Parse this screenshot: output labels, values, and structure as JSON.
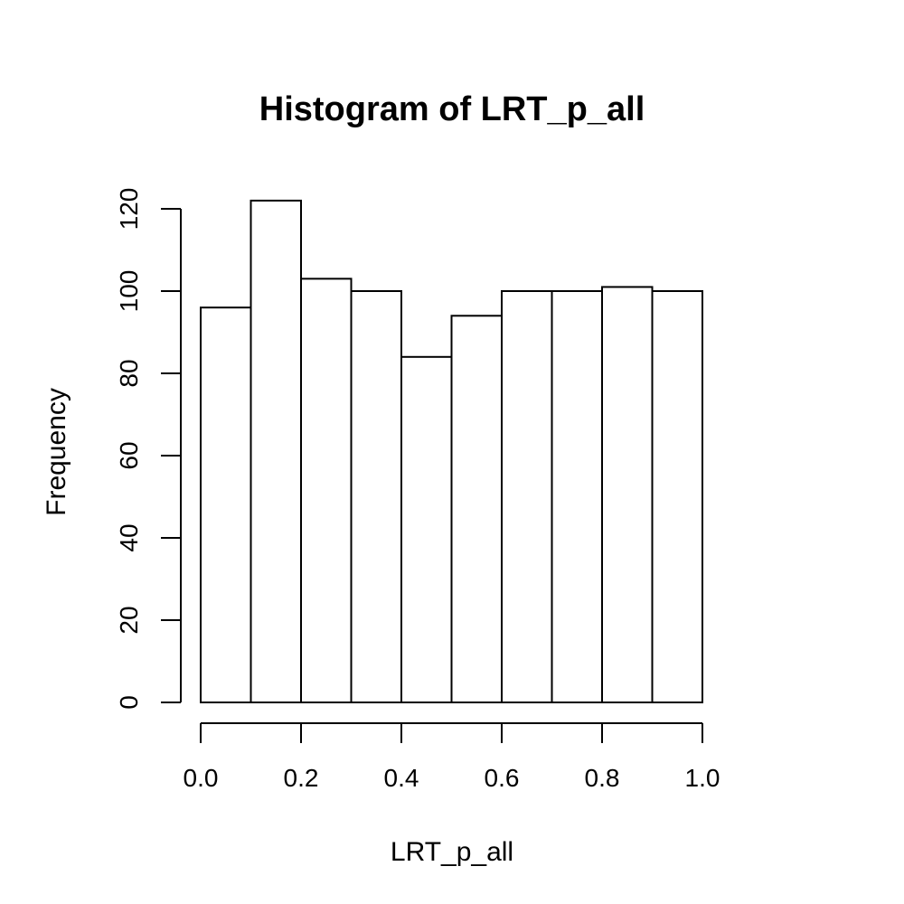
{
  "chart_data": {
    "type": "bar",
    "title": "Histogram of LRT_p_all",
    "xlabel": "LRT_p_all",
    "ylabel": "Frequency",
    "bin_edges": [
      0.0,
      0.1,
      0.2,
      0.3,
      0.4,
      0.5,
      0.6,
      0.7,
      0.8,
      0.9,
      1.0
    ],
    "values": [
      96,
      122,
      103,
      100,
      84,
      94,
      100,
      100,
      101,
      100
    ],
    "xlim": [
      0.0,
      1.0
    ],
    "ylim": [
      0,
      120
    ],
    "x_ticks": [
      0.0,
      0.2,
      0.4,
      0.6,
      0.8,
      1.0
    ],
    "x_tick_labels": [
      "0.0",
      "0.2",
      "0.4",
      "0.6",
      "0.8",
      "1.0"
    ],
    "y_ticks": [
      0,
      20,
      40,
      60,
      80,
      100,
      120
    ],
    "y_tick_labels": [
      "0",
      "20",
      "40",
      "60",
      "80",
      "100",
      "120"
    ],
    "grid": false,
    "bar_fill": "#ffffff",
    "bar_stroke": "#000000"
  }
}
